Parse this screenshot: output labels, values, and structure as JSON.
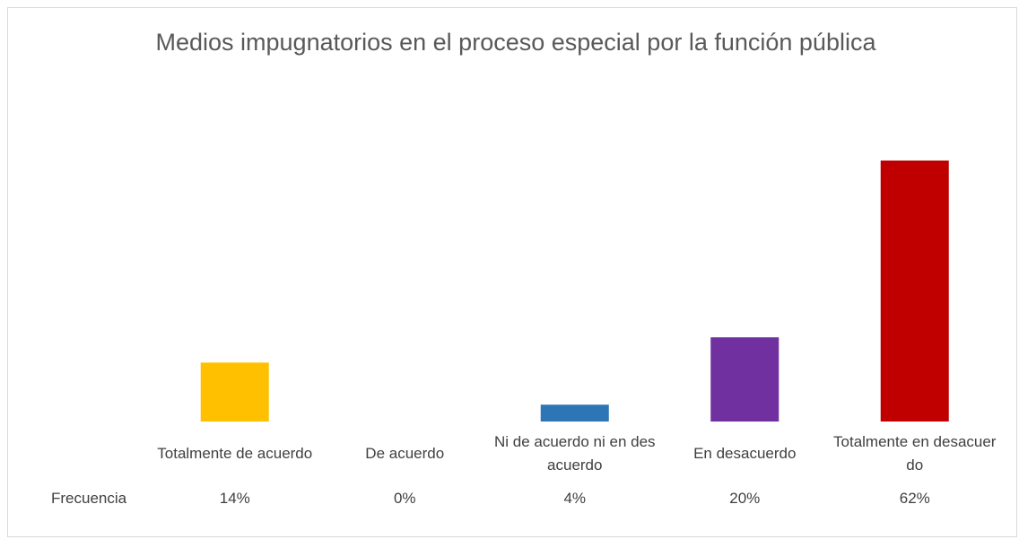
{
  "chart_data": {
    "type": "bar",
    "title": "Medios impugnatorios en el proceso especial por la función pública",
    "categories": [
      "Totalmente de acuerdo",
      "De acuerdo",
      "Ni de acuerdo ni en desacuerdo",
      "En desacuerdo",
      "Totalmente en desacuerdo"
    ],
    "series": [
      {
        "name": "Frecuencia",
        "colors": [
          "#ffc000",
          "#ed7d31",
          "#2e75b6",
          "#7030a0",
          "#c00000"
        ],
        "values": [
          14,
          0,
          4,
          20,
          62
        ],
        "value_labels": [
          "14%",
          "0%",
          "4%",
          "20%",
          "62%"
        ]
      }
    ]
  }
}
